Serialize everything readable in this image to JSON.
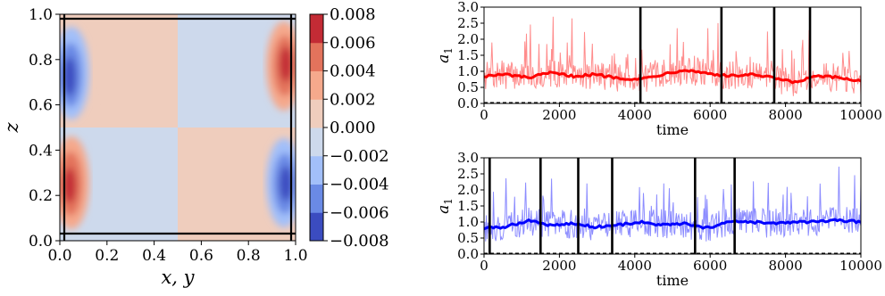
{
  "chart_data": [
    {
      "type": "heatmap",
      "xlabel": "x, y",
      "ylabel": "z",
      "xticks": [
        "0.0",
        "0.2",
        "0.4",
        "0.6",
        "0.8",
        "1.0"
      ],
      "yticks": [
        "0.0",
        "0.2",
        "0.4",
        "0.6",
        "0.8",
        "1.0"
      ],
      "xlim": [
        0,
        1
      ],
      "ylim": [
        0,
        1
      ],
      "colorbar": {
        "ticks": [
          "0.008",
          "0.006",
          "0.004",
          "0.002",
          "0.000",
          "−0.002",
          "−0.004",
          "−0.006",
          "−0.008"
        ],
        "range": [
          -0.008,
          0.008
        ],
        "levels": [
          "#3b4cc0",
          "#6a8ae5",
          "#a2bff9",
          "#cdd9ec",
          "#efcdbd",
          "#f5a98c",
          "#e3735c",
          "#c32b35"
        ]
      },
      "quadrants": [
        {
          "x": [
            0.0,
            0.5
          ],
          "z": [
            0.5,
            1.0
          ],
          "sign": "positive"
        },
        {
          "x": [
            0.5,
            1.0
          ],
          "z": [
            0.5,
            1.0
          ],
          "sign": "negative"
        },
        {
          "x": [
            0.0,
            0.5
          ],
          "z": [
            0.0,
            0.5
          ],
          "sign": "negative"
        },
        {
          "x": [
            0.5,
            1.0
          ],
          "z": [
            0.0,
            0.5
          ],
          "sign": "positive"
        }
      ],
      "boundary_lines": {
        "vertical": [
          0.02,
          0.98
        ],
        "horizontal": [
          0.03,
          0.98
        ]
      }
    },
    {
      "type": "line",
      "ylabel": "a1",
      "xlabel": "time",
      "xlim": [
        0,
        10000
      ],
      "ylim": [
        0,
        3
      ],
      "xticks": [
        "0",
        "2000",
        "4000",
        "6000",
        "8000",
        "10000"
      ],
      "yticks": [
        "0.0",
        "0.5",
        "1.0",
        "1.5",
        "2.0",
        "2.5",
        "3.0"
      ],
      "color": "#ff0000",
      "seed": 7,
      "smooth_mean": [
        0.85,
        0.9,
        0.8,
        0.95,
        0.85,
        0.9,
        0.8,
        0.75,
        0.9,
        1.05,
        0.95,
        0.85,
        0.9,
        0.8,
        0.65,
        0.85,
        0.8,
        0.7
      ],
      "vertical_lines": [
        4150,
        6300,
        7700,
        8650
      ]
    },
    {
      "type": "line",
      "ylabel": "a1",
      "xlabel": "time",
      "xlim": [
        0,
        10000
      ],
      "ylim": [
        0,
        3
      ],
      "xticks": [
        "0",
        "2000",
        "4000",
        "6000",
        "8000",
        "10000"
      ],
      "yticks": [
        "0.0",
        "0.5",
        "1.0",
        "1.5",
        "2.0",
        "2.5",
        "3.0"
      ],
      "color": "#0000ff",
      "seed": 13,
      "smooth_mean": [
        0.8,
        0.85,
        1.05,
        0.9,
        0.95,
        0.85,
        0.9,
        1.0,
        0.9,
        0.95,
        0.8,
        1.0,
        1.0,
        0.95,
        1.0,
        1.0,
        1.05,
        1.0
      ],
      "vertical_lines": [
        150,
        1500,
        2500,
        3400,
        5600,
        6650
      ]
    }
  ]
}
